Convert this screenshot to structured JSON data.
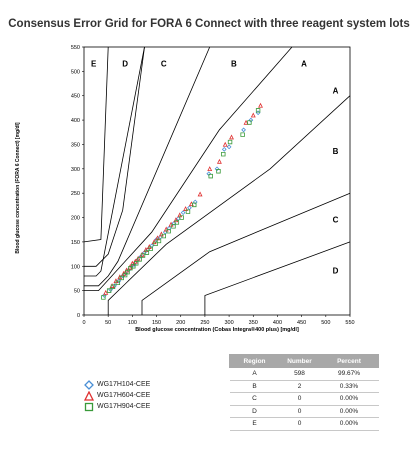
{
  "title": "Consensus Error Grid for FORA 6 Connect with three reagent system lots",
  "chart_data": {
    "type": "scatter",
    "xlabel": "Blood glucose concentration (Cobas Integra®400 plus) [mg/dl]",
    "ylabel": "Blood glucose concentration (FORA 6 Connect) [mg/dl]",
    "xlim": [
      0,
      550
    ],
    "ylim": [
      0,
      550
    ],
    "x_ticks": [
      "0",
      "50",
      "100",
      "150",
      "200",
      "250",
      "300",
      "350",
      "400",
      "450",
      "500",
      "550"
    ],
    "y_ticks": [
      "0",
      "50",
      "100",
      "150",
      "200",
      "250",
      "300",
      "350",
      "400",
      "450",
      "500",
      "550"
    ],
    "zone_labels": [
      "E",
      "D",
      "C",
      "B",
      "A",
      "A",
      "B",
      "C",
      "D"
    ],
    "series": [
      {
        "name": "WG17H104-CEE",
        "marker": "diamond",
        "color": "#4a8fd6",
        "x": [
          42,
          55,
          63,
          72,
          80,
          86,
          92,
          98,
          104,
          110,
          118,
          125,
          132,
          140,
          150,
          158,
          168,
          176,
          186,
          195,
          205,
          218,
          230,
          258,
          275,
          290,
          300,
          330,
          345,
          360
        ],
        "y": [
          40,
          52,
          60,
          70,
          80,
          86,
          92,
          100,
          104,
          112,
          120,
          128,
          134,
          142,
          155,
          160,
          170,
          178,
          188,
          198,
          210,
          220,
          232,
          290,
          300,
          340,
          345,
          380,
          400,
          415
        ]
      },
      {
        "name": "WG17H604-CEE",
        "marker": "triangle",
        "color": "#e03030",
        "x": [
          45,
          58,
          66,
          74,
          82,
          88,
          95,
          100,
          106,
          112,
          120,
          128,
          135,
          145,
          152,
          160,
          170,
          180,
          190,
          198,
          210,
          222,
          240,
          260,
          280,
          292,
          305,
          335,
          350,
          365
        ],
        "y": [
          46,
          60,
          70,
          78,
          85,
          92,
          98,
          106,
          110,
          116,
          124,
          134,
          140,
          150,
          158,
          166,
          176,
          186,
          195,
          205,
          218,
          228,
          248,
          300,
          315,
          350,
          365,
          395,
          410,
          430
        ]
      },
      {
        "name": "WG17H904-CEE",
        "marker": "square",
        "color": "#3a9a3a",
        "x": [
          40,
          52,
          60,
          70,
          78,
          85,
          90,
          96,
          102,
          108,
          115,
          122,
          130,
          138,
          148,
          155,
          165,
          175,
          185,
          192,
          202,
          215,
          228,
          262,
          278,
          288,
          302,
          328,
          342,
          360
        ],
        "y": [
          36,
          50,
          58,
          66,
          76,
          82,
          88,
          96,
          100,
          106,
          114,
          122,
          128,
          136,
          146,
          152,
          162,
          172,
          182,
          190,
          200,
          212,
          226,
          285,
          295,
          330,
          355,
          370,
          395,
          420
        ]
      }
    ]
  },
  "table": {
    "headers": [
      "Region",
      "Number",
      "Percent"
    ],
    "rows": [
      [
        "A",
        "598",
        "99.67%"
      ],
      [
        "B",
        "2",
        "0.33%"
      ],
      [
        "C",
        "0",
        "0.00%"
      ],
      [
        "D",
        "0",
        "0.00%"
      ],
      [
        "E",
        "0",
        "0.00%"
      ]
    ]
  }
}
